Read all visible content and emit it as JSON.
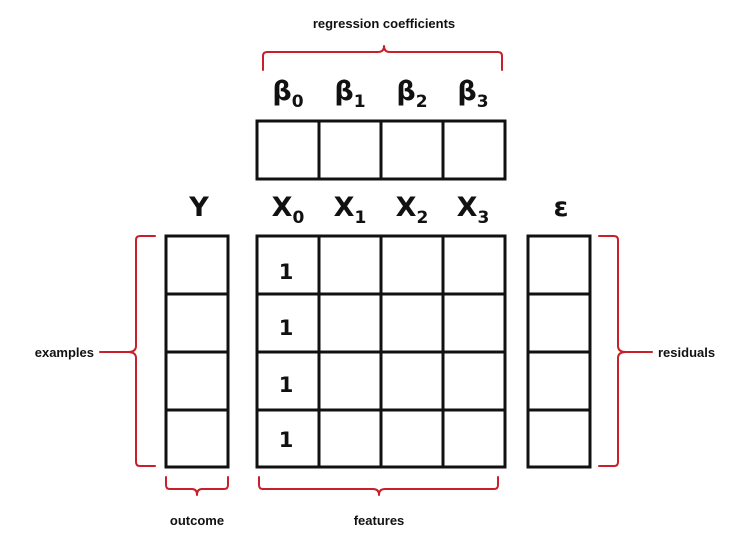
{
  "diagram": {
    "labels": {
      "coefficients": "regression coefficients",
      "examples": "examples",
      "residuals": "residuals",
      "outcome": "outcome",
      "features": "features"
    },
    "coefficients": [
      {
        "base": "β",
        "sub": "0"
      },
      {
        "base": "β",
        "sub": "1"
      },
      {
        "base": "β",
        "sub": "2"
      },
      {
        "base": "β",
        "sub": "3"
      }
    ],
    "features": [
      {
        "base": "X",
        "sub": "0"
      },
      {
        "base": "X",
        "sub": "1"
      },
      {
        "base": "X",
        "sub": "2"
      },
      {
        "base": "X",
        "sub": "3"
      }
    ],
    "outcome_symbol": "Y",
    "residual_symbol": "ε",
    "intercept_column": [
      "1",
      "1",
      "1",
      "1"
    ],
    "colors": {
      "bracket": "#c8202a",
      "grid": "#111111",
      "text": "#111111"
    }
  }
}
